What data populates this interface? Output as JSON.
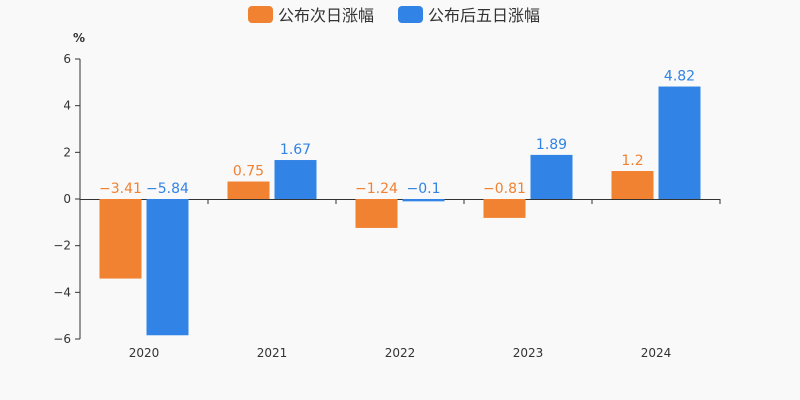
{
  "chart_data": {
    "type": "bar",
    "categories": [
      "2020",
      "2021",
      "2022",
      "2023",
      "2024"
    ],
    "series": [
      {
        "name": "公布次日涨幅",
        "color": "#f08232",
        "values": [
          -3.41,
          0.75,
          -1.24,
          -0.81,
          1.2
        ]
      },
      {
        "name": "公布后五日涨幅",
        "color": "#3283e6",
        "values": [
          -5.84,
          1.67,
          -0.1,
          1.89,
          4.82
        ]
      }
    ],
    "data_labels": [
      [
        "−3.41",
        "0.75",
        "−1.24",
        "−0.81",
        "1.2"
      ],
      [
        "−5.84",
        "1.67",
        "−0.1",
        "1.89",
        "4.82"
      ]
    ],
    "y_unit": "%",
    "ylim": [
      -6,
      6
    ],
    "yticks": [
      6,
      4,
      2,
      0,
      -2,
      -4,
      -6
    ],
    "ytick_labels": [
      "6",
      "4",
      "2",
      "0",
      "−2",
      "−4",
      "−6"
    ],
    "grid": false,
    "legend_position": "top-center"
  }
}
